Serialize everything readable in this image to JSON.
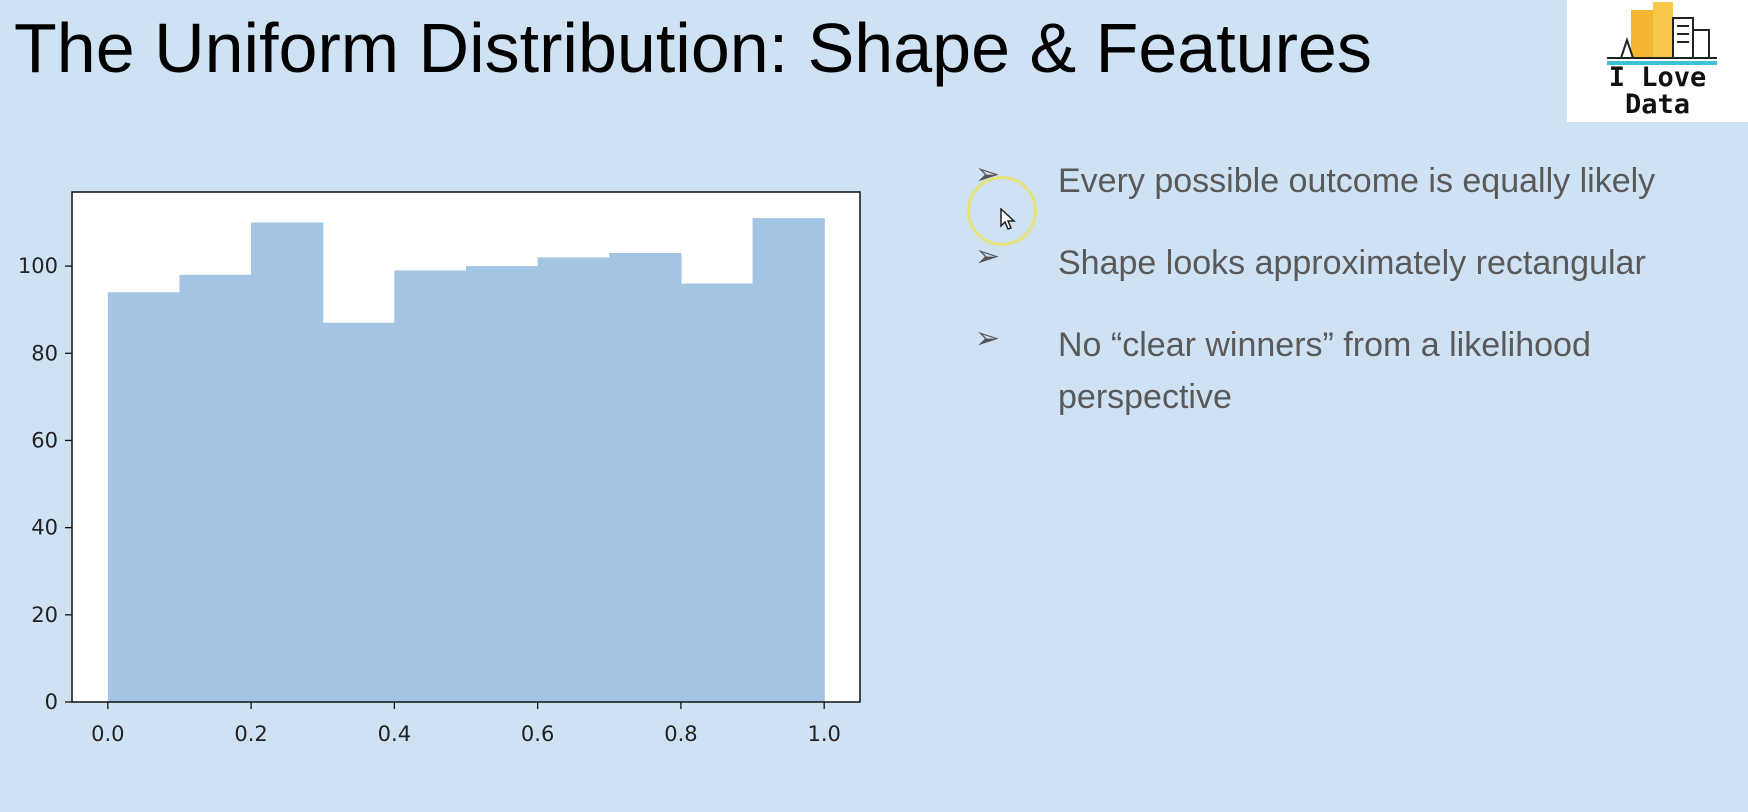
{
  "slide": {
    "title": "The Uniform Distribution: Shape & Features",
    "logo": {
      "line1": "I Love",
      "line2": "Data"
    },
    "bullets": [
      {
        "icon": "arrowhead-bullet-icon",
        "text": "Every possible outcome is equally likely"
      },
      {
        "icon": "arrowhead-bullet-icon",
        "text": "Shape looks approximately rectangular"
      },
      {
        "icon": "arrowhead-bullet-icon",
        "text": "No “clear winners” from a likelihood perspective"
      }
    ]
  },
  "chart_data": {
    "type": "bar",
    "bin_edges": [
      0.0,
      0.1,
      0.2,
      0.3,
      0.4,
      0.5,
      0.6,
      0.7,
      0.8,
      0.9,
      1.0
    ],
    "values": [
      94,
      98,
      110,
      87,
      99,
      100,
      102,
      103,
      96,
      111
    ],
    "xlim": [
      -0.05,
      1.05
    ],
    "ylim": [
      0,
      117
    ],
    "xticks": [
      "0.0",
      "0.2",
      "0.4",
      "0.6",
      "0.8",
      "1.0"
    ],
    "yticks": [
      "0",
      "20",
      "40",
      "60",
      "80",
      "100"
    ],
    "grid": false,
    "bar_color": "#a3c4e2",
    "plot_background": "#ffffff"
  },
  "colors": {
    "slide_background": "#cfe2f3",
    "bullet_text": "#595959",
    "cursor_highlight": "#e8e27a"
  }
}
